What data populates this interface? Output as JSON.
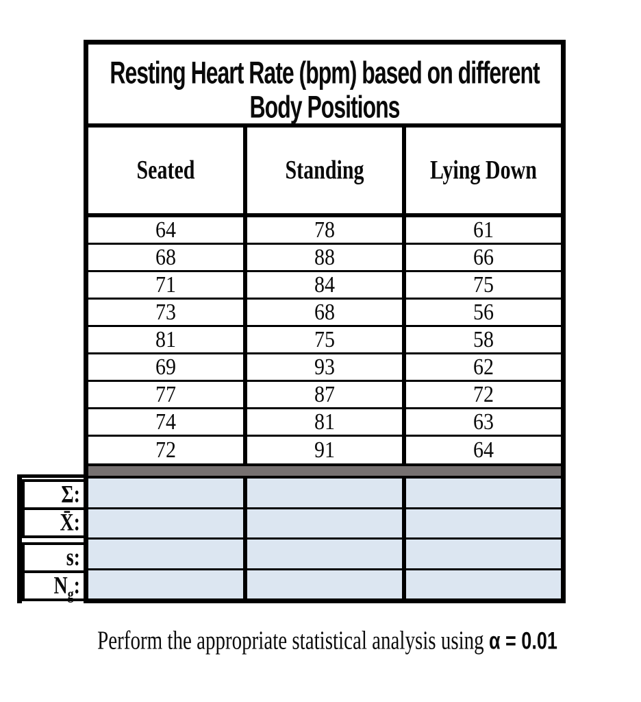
{
  "table": {
    "title_line1": "Resting Heart Rate (bpm) based on different",
    "title_line2": "Body Positions",
    "columns": [
      "Seated",
      "Standing",
      "Lying Down"
    ],
    "rows": [
      [
        64,
        78,
        61
      ],
      [
        68,
        88,
        66
      ],
      [
        71,
        84,
        75
      ],
      [
        73,
        68,
        56
      ],
      [
        81,
        75,
        58
      ],
      [
        69,
        93,
        62
      ],
      [
        77,
        87,
        72
      ],
      [
        74,
        81,
        63
      ],
      [
        72,
        91,
        64
      ]
    ]
  },
  "summary": {
    "labels": [
      {
        "text": "Σ:"
      },
      {
        "text": "X̄:"
      },
      {
        "text": "s:"
      },
      {
        "pre": "N",
        "sub": "g",
        "post": ":"
      }
    ],
    "cell_values": [
      [
        "",
        "",
        ""
      ],
      [
        "",
        "",
        ""
      ],
      [
        "",
        "",
        ""
      ],
      [
        "",
        "",
        ""
      ]
    ]
  },
  "footer": {
    "prefix": "Perform the appropriate statistical analysis using ",
    "emphasis": "α = 0.01"
  },
  "colors": {
    "separator_gray": "#767171",
    "summary_cell_blue": "#dce6f1",
    "border_black": "#000000"
  },
  "chart_data": {
    "type": "table",
    "title": "Resting Heart Rate (bpm) based on different Body Positions",
    "categories": [
      "Seated",
      "Standing",
      "Lying Down"
    ],
    "series": [
      {
        "name": "Seated",
        "values": [
          64,
          68,
          71,
          73,
          81,
          69,
          77,
          74,
          72
        ]
      },
      {
        "name": "Standing",
        "values": [
          78,
          88,
          84,
          68,
          75,
          93,
          87,
          81,
          91
        ]
      },
      {
        "name": "Lying Down",
        "values": [
          61,
          66,
          75,
          56,
          58,
          62,
          72,
          63,
          64
        ]
      }
    ]
  }
}
